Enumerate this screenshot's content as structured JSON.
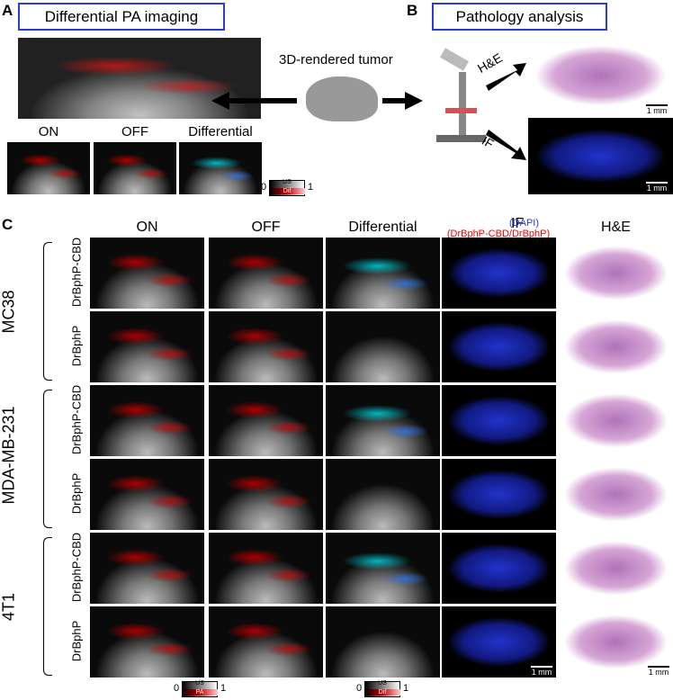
{
  "panel_a": {
    "label": "A",
    "title": "Differential PA imaging",
    "thumbs": [
      "ON",
      "OFF",
      "Differential"
    ],
    "colorbar": {
      "min": 0,
      "max": 1,
      "top": "US",
      "bottom": "Dif"
    }
  },
  "center": {
    "label": "3D-rendered tumor"
  },
  "panel_b": {
    "label": "B",
    "title": "Pathology analysis",
    "arrows": [
      "H&E",
      "IF"
    ],
    "scale_bars": [
      "1 mm",
      "1 mm"
    ]
  },
  "panel_c": {
    "label": "C",
    "columns": [
      "ON",
      "OFF",
      "Differential"
    ],
    "if_header": {
      "title": "IF",
      "dapi": "(DAPI)",
      "markers": "(DrBphP-CBD/DrBphP)"
    },
    "he_header": "H&E",
    "groups": [
      {
        "name": "MC38",
        "rows": [
          "DrBphP-CBD",
          "DrBphP"
        ]
      },
      {
        "name": "MDA-MB-231",
        "rows": [
          "DrBphP-CBD",
          "DrBphP"
        ]
      },
      {
        "name": "4T1",
        "rows": [
          "DrBphP-CBD",
          "DrBphP"
        ]
      }
    ],
    "scale_bars": [
      "1 mm",
      "1 mm"
    ],
    "colorbars": [
      {
        "min": 0,
        "max": 1,
        "top": "US",
        "bottom": "PA"
      },
      {
        "min": 0,
        "max": 1,
        "top": "US",
        "bottom": "Dif"
      }
    ]
  }
}
